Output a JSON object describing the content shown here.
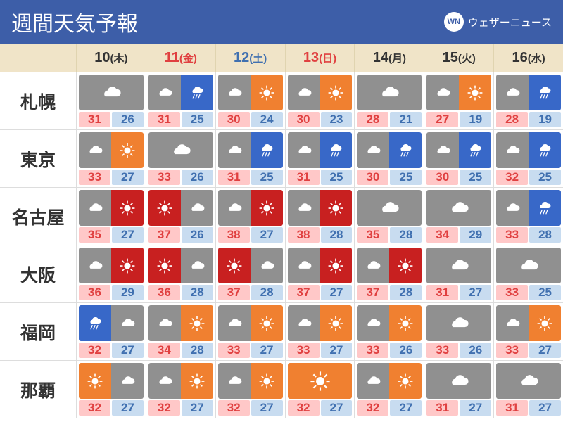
{
  "title": "週間天気予報",
  "brand": "ウェザーニュース",
  "brand_short": "WN",
  "colors": {
    "header_bg": "#3d5ea8",
    "header_fg": "#ffffff",
    "day_bg": "#f0e4c8",
    "border": "#dddddd",
    "hi_bg": "#ffc8c8",
    "hi_fg": "#e04040",
    "lo_bg": "#c8dcf0",
    "lo_fg": "#4070b0",
    "ico_gray": "#909090",
    "ico_orange": "#f08030",
    "ico_blue": "#3868c8",
    "ico_red": "#c82020",
    "day_black": "#333333",
    "day_red": "#e04040",
    "day_blue": "#4070b0"
  },
  "days": [
    {
      "d": "10",
      "w": "(木)",
      "c": "#333333"
    },
    {
      "d": "11",
      "w": "(金)",
      "c": "#e04040"
    },
    {
      "d": "12",
      "w": "(土)",
      "c": "#4070b0"
    },
    {
      "d": "13",
      "w": "(日)",
      "c": "#e04040"
    },
    {
      "d": "14",
      "w": "(月)",
      "c": "#333333"
    },
    {
      "d": "15",
      "w": "(火)",
      "c": "#333333"
    },
    {
      "d": "16",
      "w": "(水)",
      "c": "#333333"
    }
  ],
  "cities": [
    "札幌",
    "東京",
    "名古屋",
    "大阪",
    "福岡",
    "那覇"
  ],
  "cells": [
    [
      {
        "k": "cloud",
        "hi": 31,
        "lo": 26
      },
      {
        "k": "cloud-rain",
        "hi": 31,
        "lo": 25
      },
      {
        "k": "cloud-sun",
        "hi": 30,
        "lo": 24
      },
      {
        "k": "cloud-sun",
        "hi": 30,
        "lo": 23
      },
      {
        "k": "cloud",
        "hi": 28,
        "lo": 21
      },
      {
        "k": "cloud-sun",
        "hi": 27,
        "lo": 19
      },
      {
        "k": "cloud-rain",
        "hi": 28,
        "lo": 19
      }
    ],
    [
      {
        "k": "cloud-sun",
        "hi": 33,
        "lo": 27
      },
      {
        "k": "cloud",
        "hi": 33,
        "lo": 26
      },
      {
        "k": "cloud-rain",
        "hi": 31,
        "lo": 25
      },
      {
        "k": "cloud-rain",
        "hi": 31,
        "lo": 25
      },
      {
        "k": "cloud-rain",
        "hi": 30,
        "lo": 25
      },
      {
        "k": "cloud-rain",
        "hi": 30,
        "lo": 25
      },
      {
        "k": "cloud-rain",
        "hi": 32,
        "lo": 25
      }
    ],
    [
      {
        "k": "cloud-hotsun",
        "hi": 35,
        "lo": 27
      },
      {
        "k": "hotsun-cloud",
        "hi": 37,
        "lo": 26
      },
      {
        "k": "cloud-hotsun",
        "hi": 38,
        "lo": 27
      },
      {
        "k": "cloud-hotsun",
        "hi": 38,
        "lo": 28
      },
      {
        "k": "cloud",
        "hi": 35,
        "lo": 28
      },
      {
        "k": "cloud",
        "hi": 34,
        "lo": 29
      },
      {
        "k": "cloud-rain",
        "hi": 33,
        "lo": 28
      }
    ],
    [
      {
        "k": "cloud-hotsun",
        "hi": 36,
        "lo": 29
      },
      {
        "k": "hotsun-cloud",
        "hi": 36,
        "lo": 28
      },
      {
        "k": "hotsun-cloud",
        "hi": 37,
        "lo": 28
      },
      {
        "k": "cloud-hotsun",
        "hi": 37,
        "lo": 27
      },
      {
        "k": "cloud-hotsun",
        "hi": 37,
        "lo": 28
      },
      {
        "k": "cloud",
        "hi": 31,
        "lo": 27
      },
      {
        "k": "cloud",
        "hi": 33,
        "lo": 25
      }
    ],
    [
      {
        "k": "rain-cloud",
        "hi": 32,
        "lo": 27
      },
      {
        "k": "cloud-sun",
        "hi": 34,
        "lo": 28
      },
      {
        "k": "cloud-sun",
        "hi": 33,
        "lo": 27
      },
      {
        "k": "cloud-sun",
        "hi": 33,
        "lo": 27
      },
      {
        "k": "cloud-sun",
        "hi": 33,
        "lo": 26
      },
      {
        "k": "cloud",
        "hi": 33,
        "lo": 26
      },
      {
        "k": "cloud-sun",
        "hi": 33,
        "lo": 27
      }
    ],
    [
      {
        "k": "sun-cloud",
        "hi": 32,
        "lo": 27
      },
      {
        "k": "cloud-sun",
        "hi": 32,
        "lo": 27
      },
      {
        "k": "cloud-sun",
        "hi": 32,
        "lo": 27
      },
      {
        "k": "sun",
        "hi": 32,
        "lo": 27
      },
      {
        "k": "cloud-sun",
        "hi": 32,
        "lo": 27
      },
      {
        "k": "cloud",
        "hi": 31,
        "lo": 27
      },
      {
        "k": "cloud",
        "hi": 31,
        "lo": 27
      }
    ]
  ],
  "icon_keys": {
    "cloud": {
      "type": "single",
      "bg": "gray",
      "ico": "cloud"
    },
    "sun": {
      "type": "single",
      "bg": "orange",
      "ico": "sun"
    },
    "cloud-sun": {
      "type": "split",
      "l_bg": "gray",
      "l_ico": "cloud",
      "r_bg": "orange",
      "r_ico": "sun"
    },
    "cloud-rain": {
      "type": "split",
      "l_bg": "gray",
      "l_ico": "cloud",
      "r_bg": "blue",
      "r_ico": "rain"
    },
    "cloud-hotsun": {
      "type": "split",
      "l_bg": "gray",
      "l_ico": "cloud",
      "r_bg": "red",
      "r_ico": "sun"
    },
    "hotsun-cloud": {
      "type": "split",
      "l_bg": "red",
      "l_ico": "sun",
      "r_bg": "gray",
      "r_ico": "cloud"
    },
    "sun-cloud": {
      "type": "split",
      "l_bg": "orange",
      "l_ico": "sun",
      "r_bg": "gray",
      "r_ico": "cloud"
    },
    "rain-cloud": {
      "type": "split",
      "l_bg": "blue",
      "l_ico": "rain",
      "r_bg": "gray",
      "r_ico": "cloud"
    }
  }
}
